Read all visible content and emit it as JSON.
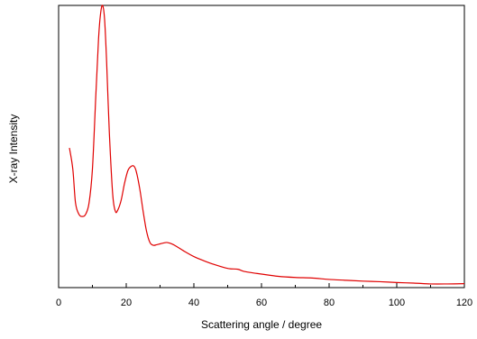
{
  "chart_data": {
    "type": "line",
    "title": "",
    "xlabel": "Scattering angle / degree",
    "ylabel": "X-ray Intensity",
    "xlim": [
      0,
      120
    ],
    "ylim": [
      0,
      100
    ],
    "x_ticks": [
      0,
      20,
      40,
      60,
      80,
      100,
      120
    ],
    "x_tick_labels": [
      "0",
      "20",
      "40",
      "60",
      "80",
      "100",
      "120"
    ],
    "y_tick_labels_shown": false,
    "grid": false,
    "legend": "none",
    "series": [
      {
        "color": "#e00000",
        "x": [
          3.2,
          4.2,
          5.0,
          6.0,
          7.0,
          8.0,
          9.0,
          10.0,
          11.0,
          11.8,
          12.4,
          13.0,
          13.6,
          14.2,
          15.0,
          16.0,
          16.8,
          17.5,
          18.5,
          19.5,
          20.5,
          21.5,
          22.3,
          23.0,
          24.0,
          25.0,
          26.0,
          27.0,
          28.0,
          29.0,
          30.0,
          31.0,
          32.0,
          33.0,
          34.0,
          35.0,
          37.0,
          40.0,
          43.0,
          46.0,
          50.0,
          53.0,
          55.0,
          60.0,
          65.0,
          70.0,
          75.0,
          80.0,
          85.0,
          90.0,
          95.0,
          100.0,
          105.0,
          110.0,
          115.0,
          120.0
        ],
        "y": [
          49.5,
          42.0,
          30.0,
          26.0,
          25.2,
          26.0,
          30.0,
          42.0,
          68.0,
          88.0,
          97.0,
          100.0,
          95.0,
          80.0,
          55.0,
          33.0,
          27.0,
          27.5,
          31.0,
          37.0,
          41.5,
          43.0,
          43.0,
          41.0,
          35.0,
          27.0,
          20.0,
          16.0,
          15.0,
          15.2,
          15.5,
          15.8,
          16.0,
          15.7,
          15.2,
          14.5,
          13.0,
          11.0,
          9.5,
          8.2,
          6.8,
          6.5,
          5.7,
          4.8,
          4.0,
          3.6,
          3.4,
          2.9,
          2.6,
          2.3,
          2.1,
          1.8,
          1.6,
          1.3,
          1.3,
          1.4
        ]
      }
    ]
  }
}
